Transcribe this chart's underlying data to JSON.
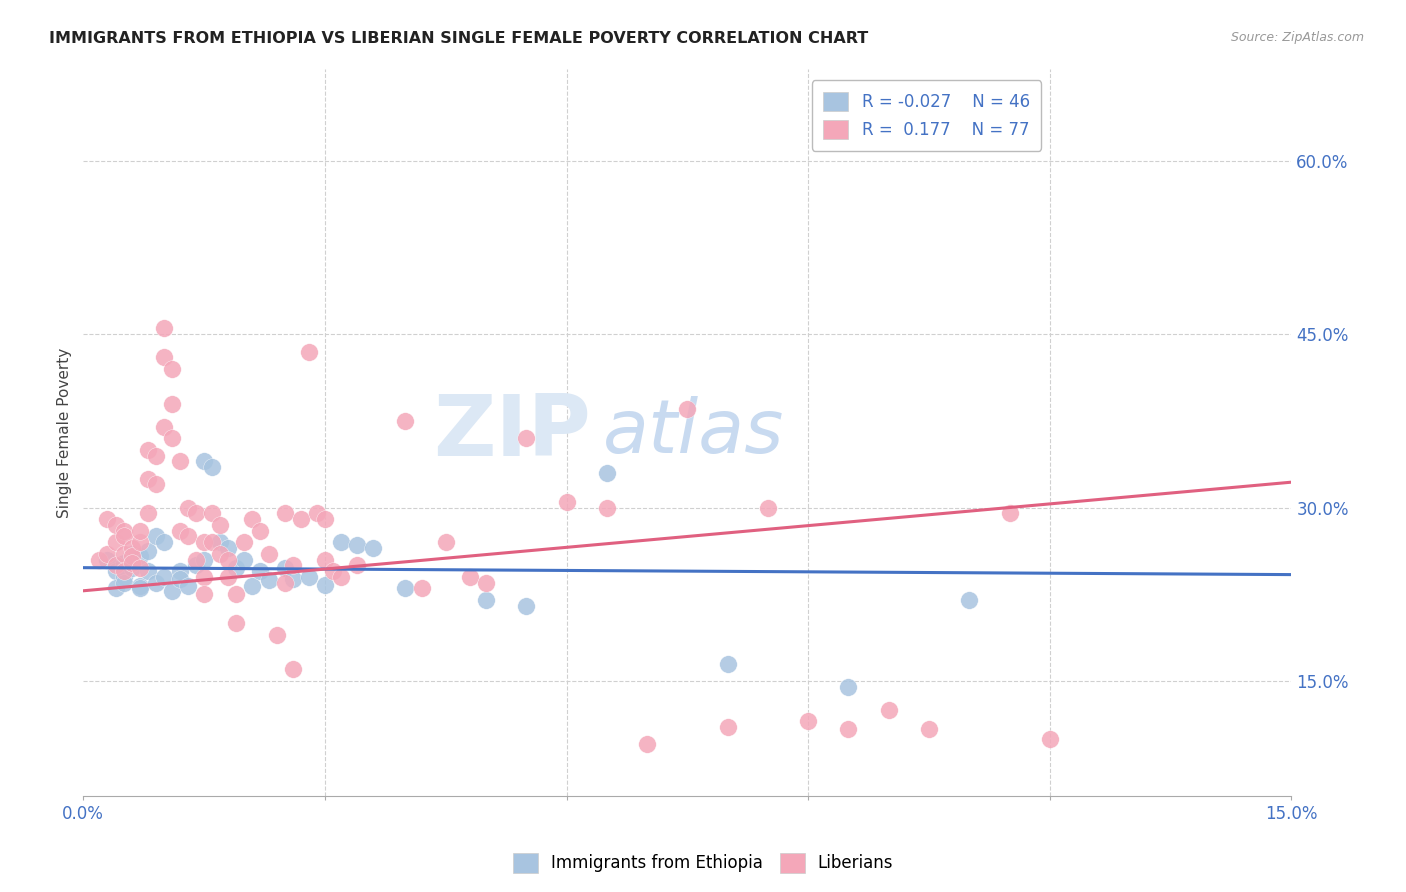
{
  "title": "IMMIGRANTS FROM ETHIOPIA VS LIBERIAN SINGLE FEMALE POVERTY CORRELATION CHART",
  "source": "Source: ZipAtlas.com",
  "ylabel": "Single Female Poverty",
  "right_yticks": [
    "60.0%",
    "45.0%",
    "30.0%",
    "15.0%"
  ],
  "right_ytick_vals": [
    0.6,
    0.45,
    0.3,
    0.15
  ],
  "xlim": [
    0.0,
    0.15
  ],
  "ylim": [
    0.05,
    0.68
  ],
  "blue_color": "#a8c4e0",
  "pink_color": "#f4a7b9",
  "blue_line_color": "#4472c4",
  "pink_line_color": "#e06080",
  "title_color": "#222222",
  "source_color": "#999999",
  "axis_label_color": "#4472c4",
  "watermark_color": "#dce8f5",
  "legend_blue_R": "R = -0.027",
  "legend_blue_N": "N = 46",
  "legend_pink_R": "R =  0.177",
  "legend_pink_N": "N = 77",
  "ethiopia_points": [
    [
      0.003,
      0.255
    ],
    [
      0.004,
      0.245
    ],
    [
      0.004,
      0.23
    ],
    [
      0.005,
      0.252
    ],
    [
      0.005,
      0.24
    ],
    [
      0.005,
      0.235
    ],
    [
      0.006,
      0.248
    ],
    [
      0.006,
      0.26
    ],
    [
      0.007,
      0.232
    ],
    [
      0.007,
      0.258
    ],
    [
      0.007,
      0.23
    ],
    [
      0.008,
      0.262
    ],
    [
      0.008,
      0.245
    ],
    [
      0.009,
      0.235
    ],
    [
      0.009,
      0.275
    ],
    [
      0.01,
      0.27
    ],
    [
      0.01,
      0.24
    ],
    [
      0.011,
      0.228
    ],
    [
      0.012,
      0.245
    ],
    [
      0.012,
      0.238
    ],
    [
      0.013,
      0.232
    ],
    [
      0.014,
      0.25
    ],
    [
      0.015,
      0.255
    ],
    [
      0.015,
      0.34
    ],
    [
      0.016,
      0.335
    ],
    [
      0.017,
      0.27
    ],
    [
      0.018,
      0.265
    ],
    [
      0.019,
      0.248
    ],
    [
      0.02,
      0.255
    ],
    [
      0.021,
      0.232
    ],
    [
      0.022,
      0.245
    ],
    [
      0.023,
      0.237
    ],
    [
      0.025,
      0.248
    ],
    [
      0.026,
      0.238
    ],
    [
      0.028,
      0.24
    ],
    [
      0.03,
      0.233
    ],
    [
      0.032,
      0.27
    ],
    [
      0.034,
      0.268
    ],
    [
      0.036,
      0.265
    ],
    [
      0.04,
      0.23
    ],
    [
      0.05,
      0.22
    ],
    [
      0.055,
      0.215
    ],
    [
      0.065,
      0.33
    ],
    [
      0.08,
      0.165
    ],
    [
      0.095,
      0.145
    ],
    [
      0.11,
      0.22
    ]
  ],
  "liberian_points": [
    [
      0.002,
      0.255
    ],
    [
      0.003,
      0.26
    ],
    [
      0.003,
      0.29
    ],
    [
      0.004,
      0.27
    ],
    [
      0.004,
      0.285
    ],
    [
      0.004,
      0.25
    ],
    [
      0.005,
      0.28
    ],
    [
      0.005,
      0.275
    ],
    [
      0.005,
      0.26
    ],
    [
      0.005,
      0.245
    ],
    [
      0.006,
      0.265
    ],
    [
      0.006,
      0.258
    ],
    [
      0.006,
      0.252
    ],
    [
      0.007,
      0.27
    ],
    [
      0.007,
      0.248
    ],
    [
      0.007,
      0.28
    ],
    [
      0.008,
      0.295
    ],
    [
      0.008,
      0.35
    ],
    [
      0.008,
      0.325
    ],
    [
      0.009,
      0.345
    ],
    [
      0.009,
      0.32
    ],
    [
      0.01,
      0.37
    ],
    [
      0.01,
      0.43
    ],
    [
      0.01,
      0.455
    ],
    [
      0.011,
      0.42
    ],
    [
      0.011,
      0.39
    ],
    [
      0.011,
      0.36
    ],
    [
      0.012,
      0.34
    ],
    [
      0.012,
      0.28
    ],
    [
      0.013,
      0.275
    ],
    [
      0.013,
      0.3
    ],
    [
      0.014,
      0.295
    ],
    [
      0.014,
      0.255
    ],
    [
      0.015,
      0.27
    ],
    [
      0.015,
      0.24
    ],
    [
      0.015,
      0.225
    ],
    [
      0.016,
      0.295
    ],
    [
      0.016,
      0.27
    ],
    [
      0.017,
      0.26
    ],
    [
      0.017,
      0.285
    ],
    [
      0.018,
      0.255
    ],
    [
      0.018,
      0.24
    ],
    [
      0.019,
      0.225
    ],
    [
      0.019,
      0.2
    ],
    [
      0.02,
      0.27
    ],
    [
      0.021,
      0.29
    ],
    [
      0.022,
      0.28
    ],
    [
      0.023,
      0.26
    ],
    [
      0.024,
      0.19
    ],
    [
      0.025,
      0.235
    ],
    [
      0.025,
      0.295
    ],
    [
      0.026,
      0.25
    ],
    [
      0.026,
      0.16
    ],
    [
      0.027,
      0.29
    ],
    [
      0.028,
      0.435
    ],
    [
      0.029,
      0.295
    ],
    [
      0.03,
      0.29
    ],
    [
      0.03,
      0.255
    ],
    [
      0.031,
      0.245
    ],
    [
      0.032,
      0.24
    ],
    [
      0.034,
      0.25
    ],
    [
      0.04,
      0.375
    ],
    [
      0.042,
      0.23
    ],
    [
      0.045,
      0.27
    ],
    [
      0.048,
      0.24
    ],
    [
      0.05,
      0.235
    ],
    [
      0.055,
      0.36
    ],
    [
      0.06,
      0.305
    ],
    [
      0.065,
      0.3
    ],
    [
      0.07,
      0.095
    ],
    [
      0.075,
      0.385
    ],
    [
      0.08,
      0.11
    ],
    [
      0.085,
      0.3
    ],
    [
      0.09,
      0.115
    ],
    [
      0.095,
      0.108
    ],
    [
      0.1,
      0.125
    ],
    [
      0.105,
      0.108
    ],
    [
      0.115,
      0.295
    ],
    [
      0.12,
      0.1
    ]
  ]
}
